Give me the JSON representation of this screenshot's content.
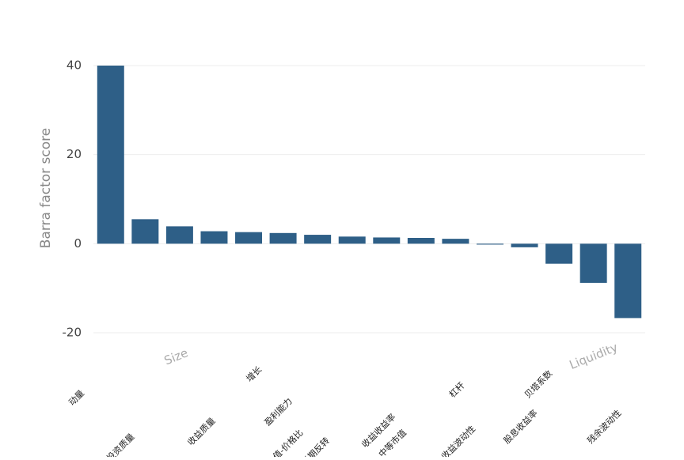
{
  "chart_data": {
    "type": "bar",
    "y_label": "Barra factor score",
    "categories": [
      "动量",
      "投资质量",
      "Size",
      "收益质量",
      "增长",
      "盈利能力",
      "账面价值-价格比",
      "长期反转",
      "收益收益率",
      "中等市值",
      "杠杆",
      "收益波动性",
      "股息收益率",
      "贝塔系数",
      "Liquidity",
      "残余波动性"
    ],
    "values": [
      40,
      5.5,
      3.9,
      2.8,
      2.6,
      2.4,
      2.0,
      1.6,
      1.4,
      1.3,
      1.1,
      -0.2,
      -0.8,
      -4.5,
      -8.8,
      -16.7
    ],
    "color": "#2e5f87",
    "ylim": [
      -20,
      40
    ],
    "yticks": [
      -20,
      0,
      20,
      40
    ],
    "grid": true
  }
}
